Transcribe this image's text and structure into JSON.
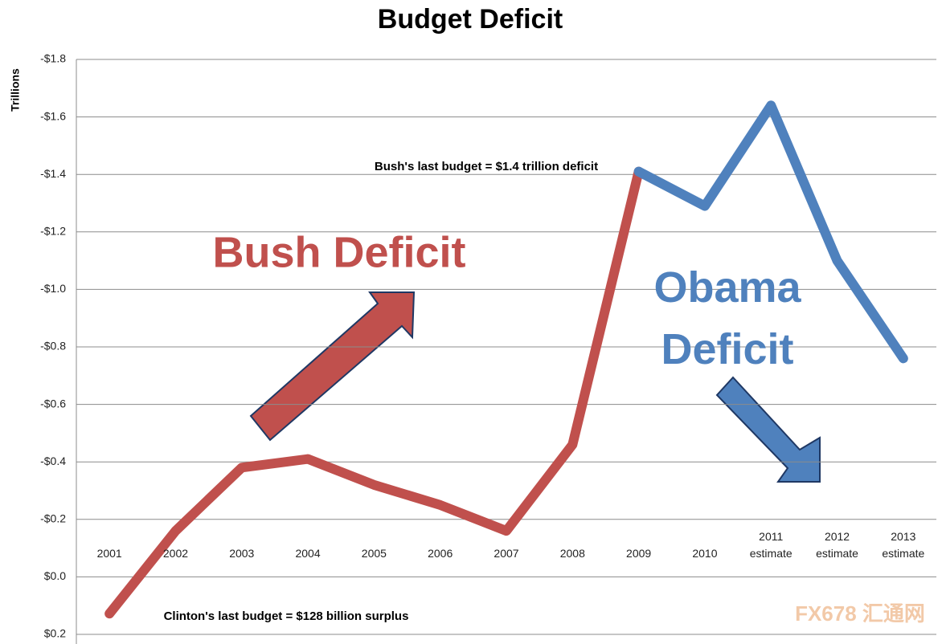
{
  "chart_data": {
    "type": "line",
    "title": "Budget Deficit",
    "y_label": "Trillions",
    "categories": [
      "2001",
      "2002",
      "2003",
      "2004",
      "2005",
      "2006",
      "2007",
      "2008",
      "2009",
      "2010",
      "2011 estimate",
      "2012 estimate",
      "2013 estimate"
    ],
    "series": [
      {
        "name": "Bush Deficit",
        "color": "#c0504d",
        "values": [
          0.128,
          -0.16,
          -0.38,
          -0.41,
          -0.32,
          -0.25,
          -0.16,
          -0.46,
          -1.41,
          null,
          null,
          null,
          null
        ]
      },
      {
        "name": "Obama Deficit",
        "color": "#4f81bd",
        "values": [
          null,
          null,
          null,
          null,
          null,
          null,
          null,
          null,
          -1.41,
          -1.29,
          -1.64,
          -1.1,
          -0.76
        ]
      }
    ],
    "ylim": [
      0.2,
      -1.8
    ],
    "yticks": [
      {
        "value": 0.2,
        "label": "$0.2"
      },
      {
        "value": 0,
        "label": "$0.0"
      },
      {
        "value": -0.2,
        "label": "-$0.2"
      },
      {
        "value": -0.4,
        "label": "-$0.4"
      },
      {
        "value": -0.6,
        "label": "-$0.6"
      },
      {
        "value": -0.8,
        "label": "-$0.8"
      },
      {
        "value": -1.0,
        "label": "-$1.0"
      },
      {
        "value": -1.2,
        "label": "-$1.2"
      },
      {
        "value": -1.4,
        "label": "-$1.4"
      },
      {
        "value": -1.6,
        "label": "-$1.6"
      },
      {
        "value": -1.8,
        "label": "-$1.8"
      }
    ],
    "grid": true,
    "annotations": [
      "Bush's last budget = $1.4 trillion deficit",
      "Clinton's last budget = $128 billion surplus"
    ],
    "watermark": "FX678 汇通网"
  }
}
